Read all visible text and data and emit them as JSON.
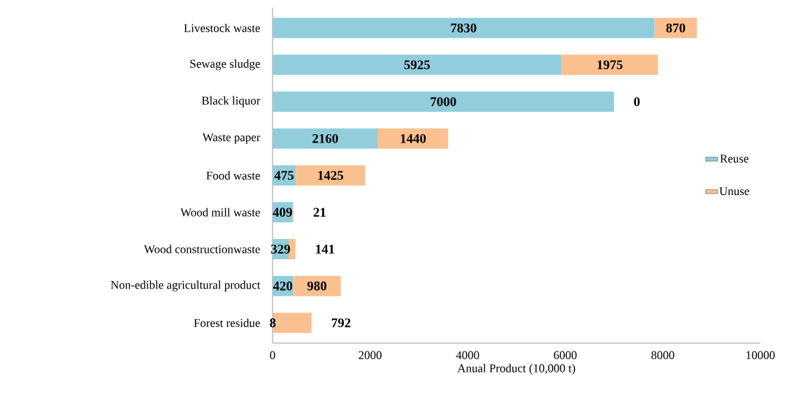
{
  "chart_data": {
    "type": "bar",
    "orientation": "horizontal",
    "stacked": true,
    "xlabel": "Anual Product (10,000 t)",
    "categories": [
      "Livestock waste",
      "Sewage sludge",
      "Black liquor",
      "Waste paper",
      "Food waste",
      "Wood mill waste",
      "Wood constructionwaste",
      "Non-edible agricultural product",
      "Forest residue"
    ],
    "series": [
      {
        "name": "Reuse",
        "color": "#92cddc",
        "values": [
          7830,
          5925,
          7000,
          2160,
          475,
          409,
          329,
          420,
          8
        ]
      },
      {
        "name": "Unuse",
        "color": "#fac090",
        "values": [
          870,
          1975,
          0,
          1440,
          1425,
          21,
          141,
          980,
          792
        ]
      }
    ],
    "xlim": [
      0,
      10000
    ],
    "xticks": [
      0,
      2000,
      4000,
      6000,
      8000,
      10000
    ],
    "data_labels": true,
    "legend": "right",
    "grid": false
  }
}
